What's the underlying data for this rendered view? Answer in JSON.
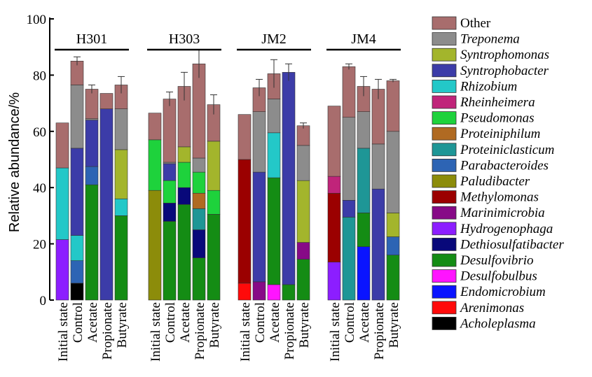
{
  "chart_data": {
    "type": "bar",
    "stacked": true,
    "ylabel": "Relative abundance/%",
    "ylim": [
      0,
      100
    ],
    "yticks": [
      0,
      20,
      40,
      60,
      80,
      100
    ],
    "groups": [
      "H301",
      "H303",
      "JM2",
      "JM4"
    ],
    "categories": [
      "Initial state",
      "Control",
      "Acetate",
      "Propionate",
      "Butyrate"
    ],
    "legend_position": "right",
    "taxa": [
      {
        "name": "Other",
        "color": "#a86d6d",
        "italic": false
      },
      {
        "name": "Treponema",
        "color": "#8c8c8c",
        "italic": true
      },
      {
        "name": "Syntrophomonas",
        "color": "#a3b52c",
        "italic": true
      },
      {
        "name": "Syntrophobacter",
        "color": "#3c3ca8",
        "italic": true
      },
      {
        "name": "Rhizobium",
        "color": "#23c8c8",
        "italic": true
      },
      {
        "name": "Rheinheimera",
        "color": "#c0247a",
        "italic": true
      },
      {
        "name": "Pseudomonas",
        "color": "#1ed23c",
        "italic": true
      },
      {
        "name": "Proteiniphilum",
        "color": "#b06a22",
        "italic": true
      },
      {
        "name": "Proteiniclasticum",
        "color": "#1e9696",
        "italic": true
      },
      {
        "name": "Parabacteroides",
        "color": "#2d64b4",
        "italic": true
      },
      {
        "name": "Paludibacter",
        "color": "#8c8c0a",
        "italic": true
      },
      {
        "name": "Methylomonas",
        "color": "#9b0000",
        "italic": true
      },
      {
        "name": "Marinimicrobia",
        "color": "#870a87",
        "italic": true
      },
      {
        "name": "Hydrogenophaga",
        "color": "#8c1eff",
        "italic": true
      },
      {
        "name": "Dethiosulfatibacter",
        "color": "#08087a",
        "italic": true
      },
      {
        "name": "Desulfovibrio",
        "color": "#148c14",
        "italic": true
      },
      {
        "name": "Desulfobulbus",
        "color": "#ff14ff",
        "italic": true
      },
      {
        "name": "Endomicrobium",
        "color": "#0a14ff",
        "italic": true
      },
      {
        "name": "Arenimonas",
        "color": "#ff0a0a",
        "italic": true
      },
      {
        "name": "Acholeplasma",
        "color": "#000000",
        "italic": true
      }
    ],
    "bars": [
      {
        "group": "H301",
        "category": "Initial state",
        "total": 63,
        "segments": [
          [
            "Hydrogenophaga",
            21.5
          ],
          [
            "Rhizobium",
            25.5
          ],
          [
            "Other",
            16
          ]
        ]
      },
      {
        "group": "H301",
        "category": "Control",
        "total": 85,
        "error": 1.5,
        "segments": [
          [
            "Acholeplasma",
            6
          ],
          [
            "Parabacteroides",
            8
          ],
          [
            "Rhizobium",
            9
          ],
          [
            "Syntrophobacter",
            31
          ],
          [
            "Treponema",
            22.5
          ],
          [
            "Other",
            8.5
          ]
        ]
      },
      {
        "group": "H301",
        "category": "Acetate",
        "total": 75,
        "error": 1.5,
        "segments": [
          [
            "Desulfovibrio",
            41
          ],
          [
            "Parabacteroides",
            6.5
          ],
          [
            "Syntrophobacter",
            16.5
          ],
          [
            "Treponema",
            0.5
          ],
          [
            "Other",
            10.5
          ]
        ]
      },
      {
        "group": "H301",
        "category": "Propionate",
        "total": 73.5,
        "segments": [
          [
            "Syntrophobacter",
            68
          ],
          [
            "Other",
            5.5
          ]
        ]
      },
      {
        "group": "H301",
        "category": "Butyrate",
        "total": 76.5,
        "error": 3,
        "segments": [
          [
            "Desulfovibrio",
            30
          ],
          [
            "Rhizobium",
            6
          ],
          [
            "Syntrophomonas",
            17.5
          ],
          [
            "Treponema",
            14.5
          ],
          [
            "Other",
            8.5
          ]
        ]
      },
      {
        "group": "H303",
        "category": "Initial state",
        "total": 66.5,
        "segments": [
          [
            "Paludibacter",
            39
          ],
          [
            "Pseudomonas",
            18
          ],
          [
            "Other",
            9.5
          ]
        ]
      },
      {
        "group": "H303",
        "category": "Control",
        "total": 71.5,
        "error": 2.5,
        "segments": [
          [
            "Desulfovibrio",
            28
          ],
          [
            "Dethiosulfatibacter",
            6.5
          ],
          [
            "Pseudomonas",
            8
          ],
          [
            "Syntrophobacter",
            6
          ],
          [
            "Treponema",
            0.5
          ],
          [
            "Other",
            22.5
          ]
        ]
      },
      {
        "group": "H303",
        "category": "Acetate",
        "total": 76,
        "error": 5,
        "segments": [
          [
            "Desulfovibrio",
            34
          ],
          [
            "Dethiosulfatibacter",
            6
          ],
          [
            "Pseudomonas",
            9
          ],
          [
            "Syntrophomonas",
            5.5
          ],
          [
            "Other",
            21.5
          ]
        ]
      },
      {
        "group": "H303",
        "category": "Propionate",
        "total": 84,
        "error": 5,
        "segments": [
          [
            "Desulfovibrio",
            15
          ],
          [
            "Dethiosulfatibacter",
            10
          ],
          [
            "Proteiniclasticum",
            7.5
          ],
          [
            "Proteiniphilum",
            5.5
          ],
          [
            "Pseudomonas",
            7.5
          ],
          [
            "Treponema",
            5
          ],
          [
            "Other",
            33.5
          ]
        ]
      },
      {
        "group": "H303",
        "category": "Butyrate",
        "total": 69.5,
        "error": 3.5,
        "segments": [
          [
            "Desulfovibrio",
            30.5
          ],
          [
            "Pseudomonas",
            8.5
          ],
          [
            "Syntrophomonas",
            17.5
          ],
          [
            "Other",
            13
          ]
        ]
      },
      {
        "group": "JM2",
        "category": "Initial state",
        "total": 66,
        "segments": [
          [
            "Arenimonas",
            6
          ],
          [
            "Methylomonas",
            44
          ],
          [
            "Other",
            16
          ]
        ]
      },
      {
        "group": "JM2",
        "category": "Control",
        "total": 75.5,
        "error": 3,
        "segments": [
          [
            "Marinimicrobia",
            6.5
          ],
          [
            "Syntrophobacter",
            39
          ],
          [
            "Treponema",
            21.5
          ],
          [
            "Other",
            8.5
          ]
        ]
      },
      {
        "group": "JM2",
        "category": "Acetate",
        "total": 80.5,
        "error": 5,
        "segments": [
          [
            "Desulfobulbus",
            5.5
          ],
          [
            "Desulfovibrio",
            38
          ],
          [
            "Rhizobium",
            16
          ],
          [
            "Treponema",
            12
          ],
          [
            "Other",
            9
          ]
        ]
      },
      {
        "group": "JM2",
        "category": "Propionate",
        "total": 81,
        "error": 3,
        "segments": [
          [
            "Desulfovibrio",
            5.5
          ],
          [
            "Syntrophobacter",
            75.5
          ]
        ]
      },
      {
        "group": "JM2",
        "category": "Butyrate",
        "total": 62,
        "error": 1,
        "segments": [
          [
            "Desulfovibrio",
            14.5
          ],
          [
            "Marinimicrobia",
            6
          ],
          [
            "Syntrophomonas",
            22
          ],
          [
            "Treponema",
            12.5
          ],
          [
            "Other",
            7
          ]
        ]
      },
      {
        "group": "JM4",
        "category": "Initial state",
        "total": 69,
        "segments": [
          [
            "Hydrogenophaga",
            13.5
          ],
          [
            "Methylomonas",
            24.5
          ],
          [
            "Rheinheimera",
            6
          ],
          [
            "Other",
            25
          ]
        ]
      },
      {
        "group": "JM4",
        "category": "Control",
        "total": 83,
        "error": 1,
        "segments": [
          [
            "Proteiniclasticum",
            29.5
          ],
          [
            "Syntrophobacter",
            6
          ],
          [
            "Treponema",
            29.5
          ],
          [
            "Other",
            18
          ]
        ]
      },
      {
        "group": "JM4",
        "category": "Acetate",
        "total": 76,
        "error": 3.5,
        "segments": [
          [
            "Endomicrobium",
            19
          ],
          [
            "Desulfovibrio",
            12
          ],
          [
            "Proteiniclasticum",
            23
          ],
          [
            "Treponema",
            13
          ],
          [
            "Other",
            9
          ]
        ]
      },
      {
        "group": "JM4",
        "category": "Propionate",
        "total": 75,
        "error": 3.5,
        "segments": [
          [
            "Syntrophobacter",
            39.5
          ],
          [
            "Treponema",
            16
          ],
          [
            "Other",
            19.5
          ]
        ]
      },
      {
        "group": "JM4",
        "category": "Butyrate",
        "total": 78,
        "error": 0.5,
        "segments": [
          [
            "Desulfovibrio",
            16
          ],
          [
            "Parabacteroides",
            6.5
          ],
          [
            "Syntrophomonas",
            8.5
          ],
          [
            "Treponema",
            29
          ],
          [
            "Other",
            18
          ]
        ]
      }
    ]
  }
}
